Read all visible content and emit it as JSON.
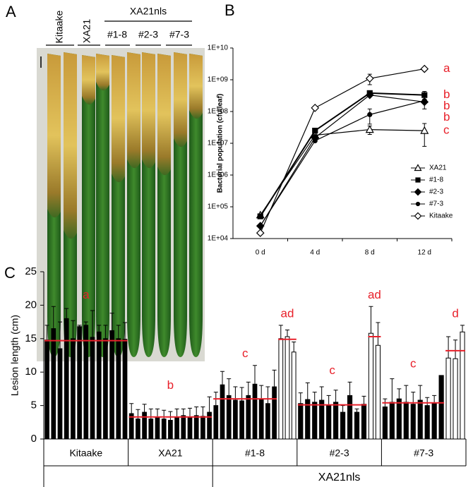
{
  "panel_labels": [
    "A",
    "B",
    "C"
  ],
  "photo_panel": {
    "lines": [
      "Kitaake",
      "XA21"
    ],
    "transgenic": {
      "label": "XA21nls",
      "lines": [
        "#1-8",
        "#2-3",
        "#7-3"
      ]
    }
  },
  "chart_data": [
    {
      "type": "line",
      "y_label": "Bacterial population (cfu/leaf)",
      "categories": [
        "0 d",
        "4 d",
        "8 d",
        "12 d"
      ],
      "log_y": true,
      "ylim": [
        10000,
        10000000000
      ],
      "yticks": [
        {
          "value": 10000,
          "label": "1E+04"
        },
        {
          "value": 100000,
          "label": "1E+05"
        },
        {
          "value": 1000000,
          "label": "1E+06"
        },
        {
          "value": 10000000,
          "label": "1E+07"
        },
        {
          "value": 100000000,
          "label": "1E+08"
        },
        {
          "value": 1000000000,
          "label": "1E+09"
        },
        {
          "value": 10000000000,
          "label": "1E+10"
        }
      ],
      "letter_color": "#e8202a",
      "legend": "lower right",
      "series": [
        {
          "name": "XA21",
          "marker": "triangle-open",
          "color": "#000000",
          "letter": "c",
          "values": [
            55000,
            18000000,
            27000000,
            25000000
          ],
          "errors": [
            null,
            null,
            8000000,
            17000000
          ]
        },
        {
          "name": "#1-8",
          "marker": "square",
          "color": "#000000",
          "letter": "b",
          "values": [
            50000,
            25000000,
            380000000,
            330000000
          ],
          "errors": [
            null,
            null,
            null,
            100000000
          ]
        },
        {
          "name": "#2-3",
          "marker": "diamond",
          "color": "#000000",
          "letter": "b",
          "values": [
            25000,
            15000000,
            330000000,
            200000000
          ],
          "errors": [
            null,
            null,
            null,
            null
          ]
        },
        {
          "name": "#7-3",
          "marker": "circle",
          "color": "#000000",
          "letter": "b",
          "values": [
            25000,
            12000000,
            80000000,
            220000000
          ],
          "errors": [
            null,
            null,
            40000000,
            100000000
          ]
        },
        {
          "name": "Kitaake",
          "marker": "diamond-open",
          "color": "#000000",
          "letter": "a",
          "values": [
            15000,
            130000000,
            1100000000,
            2200000000
          ],
          "errors": [
            null,
            null,
            400000000,
            null
          ]
        }
      ]
    },
    {
      "type": "bar",
      "y_label": "Lesion length (cm)",
      "ylim": [
        0,
        25
      ],
      "yticks": [
        0,
        5,
        10,
        15,
        20,
        25
      ],
      "mean_color": "#e8202a",
      "letter_color": "#e8202a",
      "group_caption": "XA21nls",
      "groups": [
        {
          "label": "Kitaake",
          "sets": [
            {
              "fill": "#000000",
              "mean": 14.7,
              "letter": "a",
              "values": [
                14.8,
                16.5,
                13.5,
                18.0,
                15.0,
                16.8,
                17.0,
                15.2,
                16.0,
                15.0,
                16.2,
                15.0,
                14.9
              ],
              "errors": [
                2.2,
                3.3,
                4.0,
                1.5,
                2.7,
                0.2,
                0.5,
                4.0,
                1.0,
                2.0,
                2.6,
                2.0,
                2.5
              ]
            }
          ]
        },
        {
          "label": "XA21",
          "sets": [
            {
              "fill": "#000000",
              "mean": 3.3,
              "letter": "b",
              "values": [
                3.8,
                3.0,
                4.0,
                3.0,
                3.3,
                3.0,
                2.8,
                3.3,
                3.5,
                3.2,
                3.5,
                3.4,
                4.0
              ],
              "errors": [
                1.5,
                1.4,
                1.2,
                1.5,
                1.2,
                1.3,
                1.3,
                1.2,
                1.0,
                1.4,
                1.3,
                1.4,
                2.3
              ]
            }
          ]
        },
        {
          "label": "#1-8",
          "sets": [
            {
              "fill": "#000000",
              "mean": 6.0,
              "letter": "c",
              "values": [
                5.0,
                8.1,
                6.5,
                5.8,
                5.7,
                6.5,
                8.2,
                6.0,
                5.3,
                7.8
              ],
              "errors": [
                2.0,
                2.0,
                2.5,
                2.0,
                2.0,
                2.0,
                2.8,
                2.0,
                2.5,
                2.5
              ]
            },
            {
              "fill": "#ffffff",
              "mean": 14.9,
              "letter": "ad",
              "values": [
                15.0,
                15.3,
                13.0
              ],
              "errors": [
                2.0,
                1.0,
                1.5
              ]
            }
          ]
        },
        {
          "label": "#2-3",
          "sets": [
            {
              "fill": "#000000",
              "mean": 5.1,
              "letter": "c",
              "values": [
                5.3,
                5.9,
                5.5,
                5.8,
                5.0,
                5.5,
                4.0,
                6.5,
                4.0,
                5.2
              ],
              "errors": [
                1.6,
                2.5,
                1.5,
                2.0,
                1.5,
                1.8,
                1.0,
                2.0,
                0.5,
                1.2
              ]
            },
            {
              "fill": "#ffffff",
              "mean": 15.3,
              "letter": "ad",
              "values": [
                15.8,
                14.0
              ],
              "errors": [
                4.0,
                3.4
              ]
            }
          ]
        },
        {
          "label": "#7-3",
          "sets": [
            {
              "fill": "#000000",
              "mean": 5.4,
              "letter": "c",
              "values": [
                4.8,
                5.5,
                6.0,
                5.5,
                5.2,
                5.8,
                5.0,
                5.3,
                9.5
              ],
              "errors": [
                1.2,
                3.5,
                1.5,
                2.5,
                1.8,
                2.2,
                1.2,
                1.2,
                null
              ]
            },
            {
              "fill": "#ffffff",
              "mean": 13.2,
              "letter": "d",
              "values": [
                12.1,
                12.0,
                16.0
              ],
              "errors": [
                3.2,
                2.8,
                1.0
              ]
            }
          ]
        }
      ]
    }
  ]
}
